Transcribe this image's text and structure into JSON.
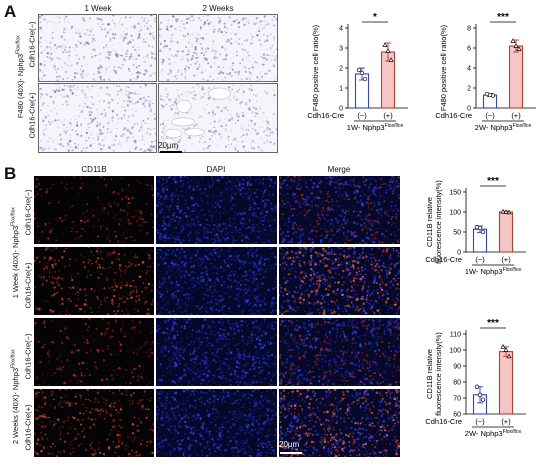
{
  "panelA": {
    "letter": "A",
    "columns": [
      "1 Week",
      "2 Weeks"
    ],
    "side_label_main": "F480 (40X)- Nphp3",
    "side_label_sup": "Flox/flox",
    "row_labels": [
      "Cdh16-Cre(−)",
      "Cdh16-Cre(+)"
    ],
    "scale_label": "20μm"
  },
  "panelB": {
    "letter": "B",
    "columns": [
      "CD11B",
      "DAPI",
      "Merge"
    ],
    "group_labels": [
      {
        "main": "1 Week (40X)- Nphp3",
        "sup": "Flox/flox"
      },
      {
        "main": "2 Weeks (40X)- Nphp3",
        "sup": "Flox/flox"
      }
    ],
    "row_labels": [
      "Cdh16-Cre(−)",
      "Cdh16-Cre(+)",
      "Cdh16-Cre(−)",
      "Cdh16-Cre(+)"
    ],
    "scale_label": "20μm"
  },
  "colors": {
    "neg_bar": "#2f3fc8",
    "pos_bar": "#c0392b",
    "pos_fill": "#f5c6c6",
    "points": "#000000"
  },
  "chart_data": [
    {
      "type": "bar",
      "ylabel": "F480 positive cell ratio(%)",
      "ylim": [
        0,
        4
      ],
      "yticks": [
        "0",
        "1",
        "2",
        "3",
        "4"
      ],
      "xrow_label": "Cdh16-Cre",
      "categories": [
        "(−)",
        "(+)"
      ],
      "group_label": "1W- Nphp3",
      "group_sup": "Flox/flox",
      "values": [
        1.7,
        2.8
      ],
      "errors": [
        0.3,
        0.45
      ],
      "points": [
        [
          1.9,
          1.45,
          1.75
        ],
        [
          3.15,
          2.4,
          2.85
        ]
      ],
      "significance": "*"
    },
    {
      "type": "bar",
      "ylabel": "F480 positive cell ratio(%)",
      "ylim": [
        0,
        8
      ],
      "yticks": [
        "0",
        "2",
        "4",
        "6",
        "8"
      ],
      "xrow_label": "Cdh16-Cre",
      "categories": [
        "(−)",
        "(+)"
      ],
      "group_label": "2W- Nphp3",
      "group_sup": "Flox/flox",
      "values": [
        1.3,
        6.2
      ],
      "errors": [
        0.15,
        0.6
      ],
      "points": [
        [
          1.4,
          1.25,
          1.3
        ],
        [
          6.7,
          5.9,
          6.2
        ]
      ],
      "significance": "***"
    },
    {
      "type": "bar",
      "ylabel": "CD11B relative fluorescence intensity(%)",
      "ylim": [
        0,
        120
      ],
      "yticks": [
        "0",
        "50",
        "100",
        "150"
      ],
      "ymax_tick": 150,
      "xrow_label": "Cdh16-Cre",
      "categories": [
        "(−)",
        "(+)"
      ],
      "group_label": "1W- Nphp3",
      "group_sup": "Flox/flox",
      "values": [
        57,
        100
      ],
      "errors": [
        8,
        2
      ],
      "points": [
        [
          62,
          50,
          60
        ],
        [
          101,
          99,
          100
        ]
      ],
      "significance": "***"
    },
    {
      "type": "bar",
      "ylabel": "CD11B relative fluorescence intensity(%)",
      "ylim": [
        60,
        110
      ],
      "yticks": [
        "60",
        "70",
        "80",
        "90",
        "100",
        "110"
      ],
      "xrow_label": "Cdh16-Cre",
      "categories": [
        "(−)",
        "(+)"
      ],
      "group_label": "2W- Nphp3",
      "group_sup": "Flox/flox",
      "values": [
        72,
        99
      ],
      "errors": [
        5,
        3
      ],
      "points": [
        [
          77,
          69,
          72
        ],
        [
          102,
          96,
          100
        ]
      ],
      "significance": "***"
    }
  ]
}
